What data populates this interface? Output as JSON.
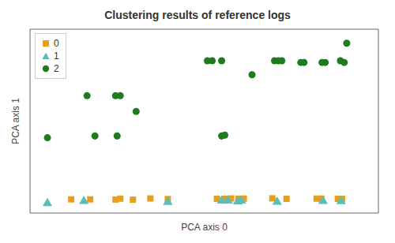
{
  "chart_data": {
    "type": "scatter",
    "title": "Clustering results of reference logs",
    "x_label": "PCA axis 0",
    "y_label": "PCA axis 1",
    "xlim": [
      -0.05,
      1.05
    ],
    "ylim": [
      -0.05,
      1.0
    ],
    "tick_labels": false,
    "grid": false,
    "legend": "upper left",
    "series": [
      {
        "name": "0",
        "color": "#E6A020",
        "marker": "square",
        "x": [
          0.08,
          0.14,
          0.22,
          0.235,
          0.275,
          0.33,
          0.385,
          0.54,
          0.565,
          0.585,
          0.608,
          0.615,
          0.625,
          0.715,
          0.76,
          0.855,
          0.87,
          0.922,
          0.935
        ],
        "values": [
          0.028,
          0.028,
          0.027,
          0.032,
          0.026,
          0.033,
          0.03,
          0.031,
          0.031,
          0.033,
          0.032,
          0.027,
          0.032,
          0.034,
          0.031,
          0.032,
          0.032,
          0.031,
          0.031
        ]
      },
      {
        "name": "1",
        "color": "#5BBCB8",
        "marker": "triangle",
        "x": [
          0.005,
          0.12,
          0.385,
          0.555,
          0.575,
          0.606,
          0.617,
          0.73,
          0.875,
          0.932
        ],
        "values": [
          0.005,
          0.018,
          0.012,
          0.02,
          0.02,
          0.015,
          0.02,
          0.013,
          0.018,
          0.016
        ]
      },
      {
        "name": "2",
        "color": "#1E7B1E",
        "marker": "circle",
        "x": [
          0.005,
          0.13,
          0.22,
          0.235,
          0.285,
          0.155,
          0.225,
          0.51,
          0.525,
          0.555,
          0.651,
          0.722,
          0.734,
          0.745,
          0.805,
          0.815,
          0.872,
          0.882,
          0.93,
          0.942,
          0.95,
          0.555,
          0.565
        ],
        "values": [
          0.38,
          0.62,
          0.62,
          0.62,
          0.53,
          0.39,
          0.39,
          0.82,
          0.82,
          0.82,
          0.74,
          0.82,
          0.82,
          0.82,
          0.81,
          0.81,
          0.81,
          0.81,
          0.82,
          0.81,
          0.92,
          0.39,
          0.395
        ]
      }
    ]
  }
}
